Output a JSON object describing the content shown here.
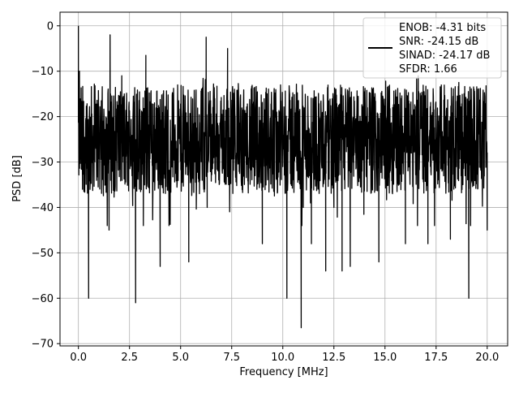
{
  "chart_data": {
    "type": "line",
    "xlabel": "Frequency [MHz]",
    "ylabel": "PSD [dB]",
    "xlim": [
      -0.9,
      21.0
    ],
    "ylim": [
      -70.5,
      3.0
    ],
    "xticks": [
      0.0,
      2.5,
      5.0,
      7.5,
      10.0,
      12.5,
      15.0,
      17.5,
      20.0
    ],
    "xtick_labels": [
      "0.0",
      "2.5",
      "5.0",
      "7.5",
      "10.0",
      "12.5",
      "15.0",
      "17.5",
      "20.0"
    ],
    "yticks": [
      0,
      -10,
      -20,
      -30,
      -40,
      -50,
      -60,
      -70
    ],
    "ytick_labels": [
      "0",
      "−10",
      "−20",
      "−30",
      "−40",
      "−50",
      "−60",
      "−70"
    ],
    "grid": true,
    "legend_position": "upper-right",
    "line_color": "#000000",
    "legend_lines": [
      "ENOB: -4.31 bits",
      "SNR: -24.15 dB",
      "SINAD: -24.17 dB",
      "SFDR: 1.66"
    ],
    "series": [
      {
        "color": "#000000",
        "x": [
          0.0,
          0.05,
          0.1,
          0.2,
          0.5,
          0.6,
          1.5,
          1.55,
          2.8,
          3.3,
          4.0,
          5.4,
          6.25,
          6.3,
          7.3,
          7.35,
          9.0,
          10.2,
          10.9,
          11.0,
          11.4,
          12.1,
          12.5,
          12.9,
          13.3,
          14.7,
          16.0,
          17.1,
          18.2,
          19.1,
          20.0
        ],
        "y": [
          0,
          -10,
          -20,
          -36,
          -60,
          -26,
          -45,
          -2,
          -61,
          -6.5,
          -53,
          -52,
          -2.5,
          -40,
          -5,
          -35,
          -48,
          -60,
          -66.5,
          -40,
          -48,
          -54,
          -40,
          -54,
          -53,
          -52,
          -48,
          -48,
          -47,
          -60,
          -45
        ]
      }
    ]
  }
}
